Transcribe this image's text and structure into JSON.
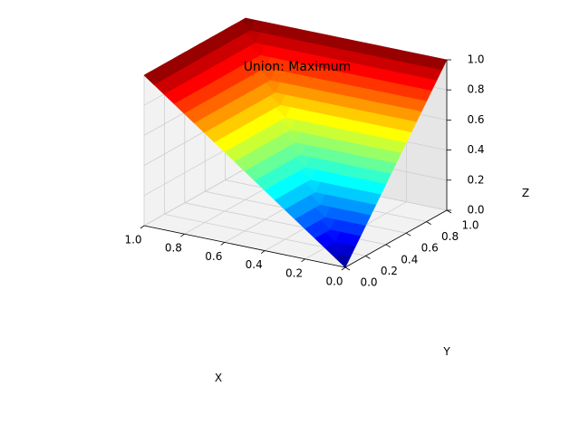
{
  "chart_data": {
    "type": "surface3d",
    "title": "Union: Maximum",
    "xlabel": "X",
    "ylabel": "Y",
    "zlabel": "Z",
    "xlim": [
      0.0,
      1.0
    ],
    "ylim": [
      0.0,
      1.0
    ],
    "zlim": [
      0.0,
      1.0
    ],
    "x_ticks": [
      "0.0",
      "0.2",
      "0.4",
      "0.6",
      "0.8",
      "1.0"
    ],
    "y_ticks": [
      "0.0",
      "0.2",
      "0.4",
      "0.6",
      "0.8",
      "1.0"
    ],
    "z_ticks": [
      "0.0",
      "0.2",
      "0.4",
      "0.6",
      "0.8",
      "1.0"
    ],
    "grid_points": 21,
    "function": "z = max(x, y)",
    "colormap": "jet",
    "grid": true
  }
}
